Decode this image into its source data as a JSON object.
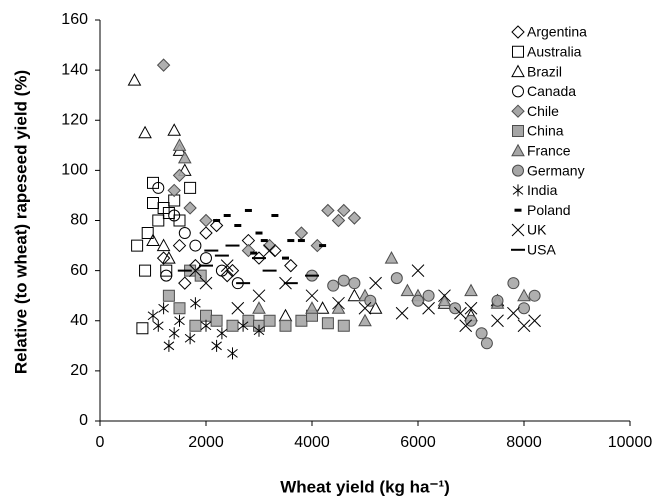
{
  "chart_data": {
    "type": "scatter",
    "x_label": "Wheat yield (kg ha⁻¹)",
    "y_label": "Relative (to wheat) rapeseed yield (%)",
    "xlim": [
      0,
      10000
    ],
    "xticks": [
      0,
      2000,
      4000,
      6000,
      8000,
      10000
    ],
    "ylim": [
      0,
      160
    ],
    "yticks": [
      0,
      20,
      40,
      60,
      80,
      100,
      120,
      140,
      160
    ],
    "legend": "upper right",
    "series": [
      {
        "name": "Argentina",
        "marker": "diamond",
        "color": "#000000",
        "fill": "none",
        "x": [
          1200,
          1500,
          1800,
          2000,
          2200,
          2500,
          2800,
          3000,
          3300,
          1600,
          2400,
          3600
        ],
        "values": [
          65,
          70,
          62,
          75,
          78,
          60,
          72,
          65,
          68,
          55,
          58,
          62
        ]
      },
      {
        "name": "Australia",
        "marker": "square",
        "color": "#000000",
        "fill": "none",
        "x": [
          700,
          800,
          850,
          900,
          1000,
          1100,
          1200,
          1300,
          1400,
          1500,
          1700,
          1250,
          1000
        ],
        "values": [
          70,
          37,
          60,
          75,
          95,
          80,
          85,
          83,
          88,
          80,
          93,
          60,
          87
        ]
      },
      {
        "name": "Brazil",
        "marker": "triangle",
        "color": "#000000",
        "fill": "none",
        "x": [
          650,
          850,
          1400,
          1500,
          1200,
          1600,
          1000,
          1300,
          4200,
          4800,
          5200,
          6500,
          7000,
          7500,
          3500
        ],
        "values": [
          136,
          115,
          116,
          108,
          70,
          100,
          72,
          65,
          45,
          50,
          45,
          47,
          42,
          48,
          42
        ]
      },
      {
        "name": "Canada",
        "marker": "circle",
        "color": "#000000",
        "fill": "none",
        "x": [
          1100,
          1400,
          1600,
          1800,
          2000,
          2300,
          1250,
          2600
        ],
        "values": [
          93,
          82,
          75,
          70,
          65,
          60,
          58,
          55
        ]
      },
      {
        "name": "Chile",
        "marker": "diamond",
        "color": "#4d4d4d",
        "fill": "#a6a6a6",
        "x": [
          1200,
          1500,
          1400,
          1700,
          2000,
          4300,
          4500,
          4600,
          4800,
          3800,
          4100,
          2800,
          3200
        ],
        "values": [
          142,
          98,
          92,
          85,
          80,
          84,
          80,
          84,
          81,
          75,
          70,
          68,
          70
        ]
      },
      {
        "name": "China",
        "marker": "square",
        "color": "#4d4d4d",
        "fill": "#a6a6a6",
        "x": [
          1300,
          1500,
          1800,
          2000,
          2200,
          2500,
          2800,
          3000,
          3200,
          3500,
          3800,
          4000,
          4300,
          4600,
          1700,
          1900
        ],
        "values": [
          50,
          45,
          38,
          42,
          40,
          38,
          40,
          38,
          40,
          38,
          40,
          42,
          39,
          38,
          60,
          58
        ]
      },
      {
        "name": "France",
        "marker": "triangle",
        "color": "#4d4d4d",
        "fill": "#a6a6a6",
        "x": [
          1500,
          1600,
          4000,
          4500,
          5000,
          5500,
          6000,
          6500,
          7000,
          7500,
          8000,
          5800,
          5000,
          3000
        ],
        "values": [
          110,
          105,
          45,
          45,
          50,
          65,
          50,
          48,
          52,
          47,
          50,
          52,
          40,
          45
        ]
      },
      {
        "name": "Germany",
        "marker": "circle",
        "color": "#4d4d4d",
        "fill": "#a6a6a6",
        "x": [
          4000,
          4400,
          4600,
          4800,
          5100,
          5600,
          6000,
          6200,
          6700,
          7000,
          7300,
          7500,
          7800,
          8000,
          8200,
          7200
        ],
        "values": [
          58,
          54,
          56,
          55,
          48,
          57,
          48,
          50,
          45,
          40,
          31,
          48,
          55,
          45,
          50,
          35
        ]
      },
      {
        "name": "India",
        "marker": "asterisk",
        "color": "#000000",
        "fill": "none",
        "x": [
          1000,
          1100,
          1300,
          1400,
          1500,
          1700,
          2000,
          2300,
          2500,
          2700,
          1200,
          1800,
          3000,
          2200
        ],
        "values": [
          42,
          38,
          30,
          35,
          40,
          33,
          38,
          35,
          27,
          38,
          45,
          47,
          36,
          30
        ]
      },
      {
        "name": "Poland",
        "marker": "short-dash",
        "color": "#000000",
        "fill": "none",
        "x": [
          2400,
          2800,
          3300,
          2600,
          3000,
          3600,
          3800,
          4200,
          2200,
          2900,
          3500,
          3100
        ],
        "values": [
          82,
          84,
          82,
          78,
          75,
          72,
          72,
          70,
          80,
          67,
          65,
          72
        ]
      },
      {
        "name": "UK",
        "marker": "x",
        "color": "#000000",
        "fill": "none",
        "x": [
          3200,
          3500,
          4000,
          4500,
          5000,
          5700,
          6000,
          6200,
          6500,
          6800,
          7000,
          7500,
          7800,
          8000,
          8200,
          6900,
          5200,
          3000,
          2000,
          2400,
          1800,
          2600
        ],
        "values": [
          68,
          55,
          50,
          47,
          45,
          43,
          60,
          45,
          50,
          43,
          45,
          40,
          43,
          38,
          40,
          38,
          55,
          50,
          55,
          62,
          60,
          45
        ]
      },
      {
        "name": "USA",
        "marker": "long-dash",
        "color": "#000000",
        "fill": "none",
        "x": [
          1600,
          2000,
          2300,
          2700,
          3000,
          3200,
          3600,
          4000,
          2500,
          2100
        ],
        "values": [
          60,
          62,
          66,
          55,
          65,
          60,
          55,
          58,
          70,
          68
        ]
      }
    ]
  }
}
